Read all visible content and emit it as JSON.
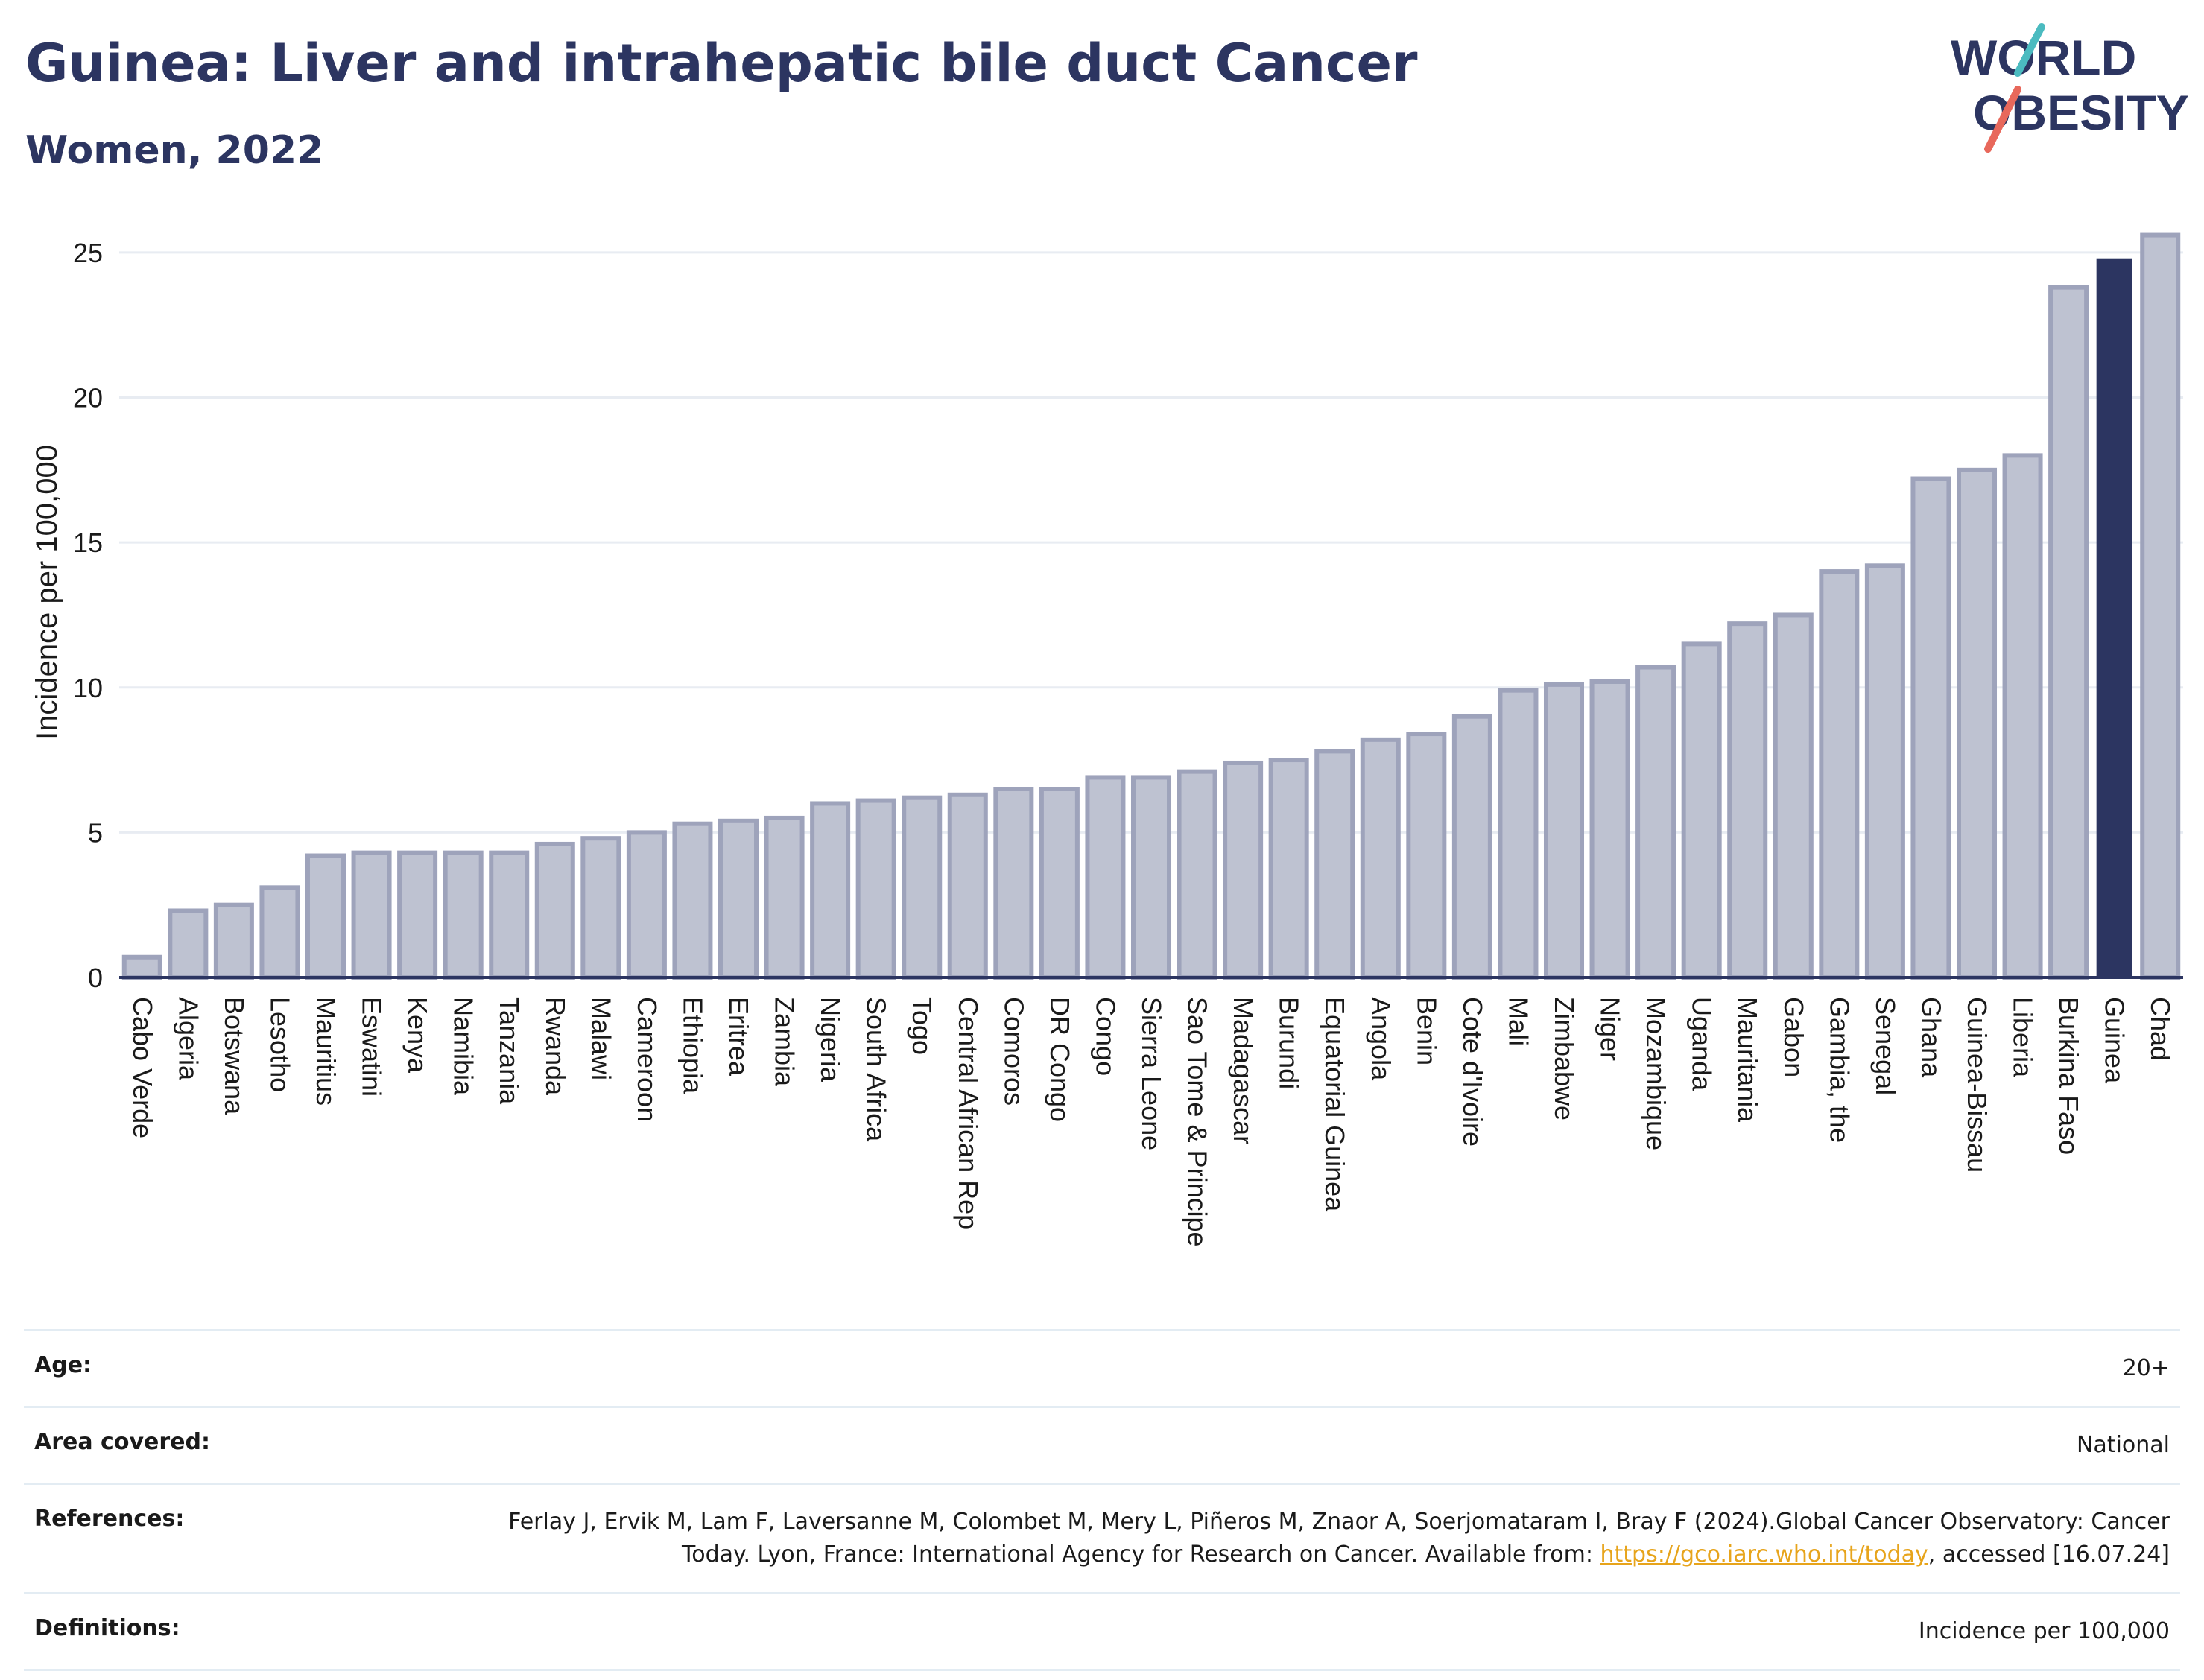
{
  "header": {
    "title": "Guinea: Liver and intrahepatic bile duct Cancer",
    "subtitle": "Women, 2022"
  },
  "logo": {
    "line1": "WORLD",
    "line2": "OBESITY",
    "icon": "world-obesity-logo",
    "slash_colors": [
      "#4bbbc0",
      "#e8685b"
    ]
  },
  "chart_data": {
    "type": "bar",
    "title": "Guinea: Liver and intrahepatic bile duct Cancer",
    "subtitle": "Women, 2022",
    "xlabel": "",
    "ylabel": "Incidence per 100,000",
    "ylim": [
      0,
      26
    ],
    "yticks": [
      0,
      5,
      10,
      15,
      20,
      25
    ],
    "grid": true,
    "highlight": "Guinea",
    "colors": {
      "bar": "#bec2d1",
      "bar_edge": "#9ea3bb",
      "highlight": "#2c3561",
      "grid": "#e8ecf2"
    },
    "categories": [
      "Cabo Verde",
      "Algeria",
      "Botswana",
      "Lesotho",
      "Mauritius",
      "Eswatini",
      "Kenya",
      "Namibia",
      "Tanzania",
      "Rwanda",
      "Malawi",
      "Cameroon",
      "Ethiopia",
      "Eritrea",
      "Zambia",
      "Nigeria",
      "South Africa",
      "Togo",
      "Central African Rep",
      "Comoros",
      "DR Congo",
      "Congo",
      "Sierra Leone",
      "Sao Tome & Principe",
      "Madagascar",
      "Burundi",
      "Equatorial Guinea",
      "Angola",
      "Benin",
      "Cote d'Ivoire",
      "Mali",
      "Zimbabwe",
      "Niger",
      "Mozambique",
      "Uganda",
      "Mauritania",
      "Gabon",
      "Gambia, the",
      "Senegal",
      "Ghana",
      "Guinea-Bissau",
      "Liberia",
      "Burkina Faso",
      "Guinea",
      "Chad"
    ],
    "values": [
      0.7,
      2.3,
      2.5,
      3.1,
      4.2,
      4.3,
      4.3,
      4.3,
      4.3,
      4.6,
      4.8,
      5.0,
      5.3,
      5.4,
      5.5,
      6.0,
      6.1,
      6.2,
      6.3,
      6.5,
      6.5,
      6.9,
      6.9,
      7.1,
      7.4,
      7.5,
      7.8,
      8.2,
      8.4,
      9.0,
      9.9,
      10.1,
      10.2,
      10.7,
      11.5,
      12.2,
      12.5,
      14.0,
      14.2,
      17.2,
      17.5,
      18.0,
      23.8,
      24.8,
      25.6
    ]
  },
  "meta": {
    "age_label": "Age:",
    "age_value": "20+",
    "area_label": "Area covered:",
    "area_value": "National",
    "references_label": "References:",
    "references_text_1": "Ferlay J, Ervik M, Lam F, Laversanne M, Colombet M, Mery L, Piñeros M, Znaor A, Soerjomataram I, Bray F (2024).Global Cancer Observatory: Cancer Today. Lyon, France: International Agency for Research on Cancer. Available from: ",
    "references_link": "https://gco.iarc.who.int/today",
    "references_text_2": ", accessed [16.07.24]",
    "definitions_label": "Definitions:",
    "definitions_value": "Incidence per 100,000"
  }
}
